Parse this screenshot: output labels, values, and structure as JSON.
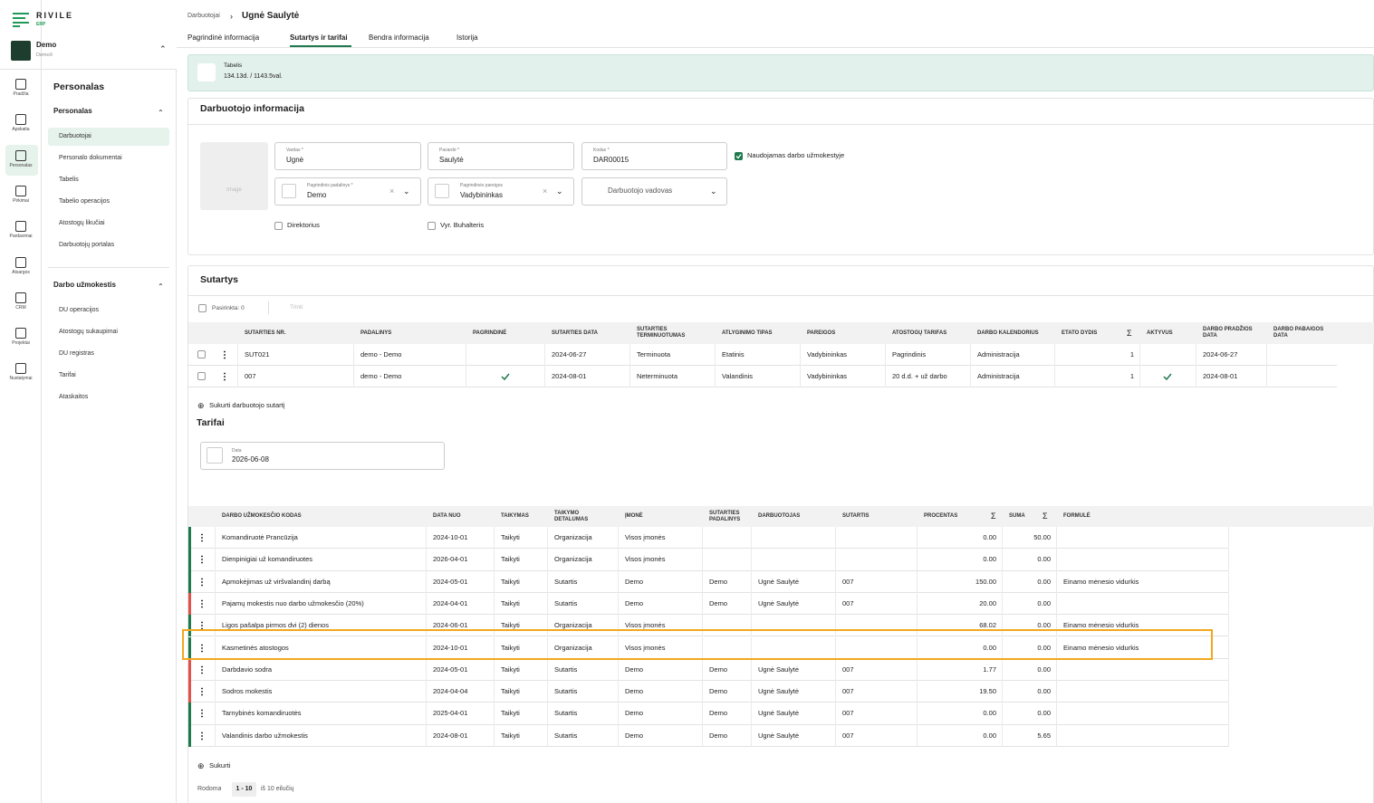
{
  "brand": {
    "name": "RIVILE",
    "sub": "ERP"
  },
  "company": {
    "name": "Demo",
    "code": "DemoX"
  },
  "rail": [
    "Pradžia",
    "Apskaita",
    "Personalas",
    "Pirkimai",
    "Pardavimai",
    "Atsargos",
    "CRM",
    "Projektai",
    "Nustatymai"
  ],
  "menu": {
    "title": "Personalas",
    "groups": [
      {
        "title": "Personalas",
        "items": [
          "Darbuotojai",
          "Personalo dokumentai",
          "Tabelis",
          "Tabelio operacijos",
          "Atostogų likučiai",
          "Darbuotojų portalas"
        ]
      },
      {
        "title": "Darbo užmokestis",
        "items": [
          "DU operacijos",
          "Atostogų sukaupimai",
          "DU registras",
          "Tarifai",
          "Ataskaitos"
        ]
      }
    ]
  },
  "breadcrumb": {
    "parent": "Darbuotojai",
    "current": "Ugnė Saulytė"
  },
  "tabs": [
    "Pagrindinė informacija",
    "Sutartys ir tarifai",
    "Bendra informacija",
    "Istorija"
  ],
  "tabelis": {
    "label": "Tabelis",
    "value": "134.13d. / 1143.5val."
  },
  "employee": {
    "title": "Darbuotojo informacija",
    "image": "Image",
    "fields": [
      {
        "label": "Vardas *",
        "value": "Ugnė"
      },
      {
        "label": "Pavardė *",
        "value": "Saulytė"
      },
      {
        "label": "Kodas *",
        "value": "DAR00015"
      },
      {
        "label": "Pagrindinis padalinys *",
        "value": "Demo"
      },
      {
        "label": "Pagrindinės pareigos",
        "value": "Vadybininkas"
      }
    ],
    "manager": "Darbuotojo vadovas",
    "checks": [
      {
        "label": "Naudojamas darbo užmokestyje",
        "checked": true
      },
      {
        "label": "Direktorius",
        "checked": false
      },
      {
        "label": "Vyr. Buhalteris",
        "checked": false
      }
    ]
  },
  "contracts": {
    "title": "Sutartys",
    "selected": "Pasirinkta: 0",
    "delete": "Trinti",
    "create": "Sukurti darbuotojo sutartį",
    "columns": [
      "SUTARTIES NR.",
      "PADALINYS",
      "PAGRINDINĖ",
      "SUTARTIES DATA",
      "SUTARTIES TERMINUOTUMAS",
      "ATLYGINIMO TIPAS",
      "PAREIGOS",
      "ATOSTOGŲ TARIFAS",
      "DARBO KALENDORIUS",
      "ETATO DYDIS",
      "AKTYVUS",
      "DARBO PRADŽIOS DATA",
      "DARBO PABAIGOS DATA"
    ],
    "rows": [
      [
        "SUT021",
        "demo - Demo",
        false,
        "2024-06-27",
        "Terminuota",
        "Etatinis",
        "Vadybininkas",
        "Pagrindinis",
        "Administracija",
        1,
        false,
        "2024-06-27",
        null
      ],
      [
        "007",
        "demo - Demo",
        true,
        "2024-08-01",
        "Neterminuota",
        "Valandinis",
        "Vadybininkas",
        "20 d.d. + už darbo",
        "Administracija",
        1,
        true,
        "2024-08-01",
        null
      ]
    ]
  },
  "tariffs": {
    "title": "Tarifai",
    "date_label": "Data",
    "date": "2026-06-08",
    "columns": [
      "DARBO UŽMOKESČIO KODAS",
      "DATA NUO",
      "TAIKYMAS",
      "TAIKYMO DETALUMAS",
      "ĮMONĖ",
      "SUTARTIES PADALINYS",
      "DARBUOTOJAS",
      "SUTARTIS",
      "PROCENTAS",
      "SUMA",
      "FORMULĖ"
    ],
    "rows": [
      {
        "color": "#1f7a4d",
        "cells": [
          "Komandiruotė Prancūzija",
          "2024-10-01",
          "Taikyti",
          "Organizacija",
          "Visos įmonės",
          null,
          null,
          null,
          "0.00",
          "50.00",
          null
        ]
      },
      {
        "color": "#1f7a4d",
        "cells": [
          "Dienpinigiai už komandiruotes",
          "2026-04-01",
          "Taikyti",
          "Organizacija",
          "Visos įmonės",
          null,
          null,
          null,
          "0.00",
          "0.00",
          null
        ]
      },
      {
        "color": "#1f7a4d",
        "cells": [
          "Apmokėjimas už viršvalandinį darbą",
          "2024-05-01",
          "Taikyti",
          "Sutartis",
          "Demo",
          "Demo",
          "Ugnė Saulytė",
          "007",
          "150.00",
          "0.00",
          "Einamo mėnesio vidurkis"
        ]
      },
      {
        "color": "#e0524a",
        "cells": [
          "Pajamų mokestis nuo darbo užmokesčio (20%)",
          "2024-04-01",
          "Taikyti",
          "Sutartis",
          "Demo",
          "Demo",
          "Ugnė Saulytė",
          "007",
          "20.00",
          "0.00",
          null
        ]
      },
      {
        "color": "#1f7a4d",
        "cells": [
          "Ligos pašalpa pirmos dvi (2) dienos",
          "2024-06-01",
          "Taikyti",
          "Organizacija",
          "Visos įmonės",
          null,
          null,
          null,
          "68.02",
          "0.00",
          "Einamo mėnesio vidurkis"
        ]
      },
      {
        "color": "#1f7a4d",
        "cells": [
          "Kasmetinės atostogos",
          "2024-10-01",
          "Taikyti",
          "Organizacija",
          "Visos įmonės",
          null,
          null,
          null,
          "0.00",
          "0.00",
          "Einamo mėnesio vidurkis"
        ]
      },
      {
        "color": "#e0524a",
        "cells": [
          "Darbdavio sodra",
          "2024-05-01",
          "Taikyti",
          "Sutartis",
          "Demo",
          "Demo",
          "Ugnė Saulytė",
          "007",
          "1.77",
          "0.00",
          null
        ]
      },
      {
        "color": "#e0524a",
        "cells": [
          "Sodros mokestis",
          "2024-04-04",
          "Taikyti",
          "Sutartis",
          "Demo",
          "Demo",
          "Ugnė Saulytė",
          "007",
          "19.50",
          "0.00",
          null
        ]
      },
      {
        "color": "#1f7a4d",
        "cells": [
          "Tarnybinės komandiruotės",
          "2025-04-01",
          "Taikyti",
          "Sutartis",
          "Demo",
          "Demo",
          "Ugnė Saulytė",
          "007",
          "0.00",
          "0.00",
          null
        ]
      },
      {
        "color": "#1f7a4d",
        "cells": [
          "Valandinis darbo užmokestis",
          "2024-08-01",
          "Taikyti",
          "Sutartis",
          "Demo",
          "Demo",
          "Ugnė Saulytė",
          "007",
          "0.00",
          "5.65",
          null
        ]
      }
    ]
  },
  "footer": {
    "create": "Sukurti",
    "showing": "Rodoma",
    "range": "1 - 10",
    "total": "iš 10 eilučių"
  }
}
